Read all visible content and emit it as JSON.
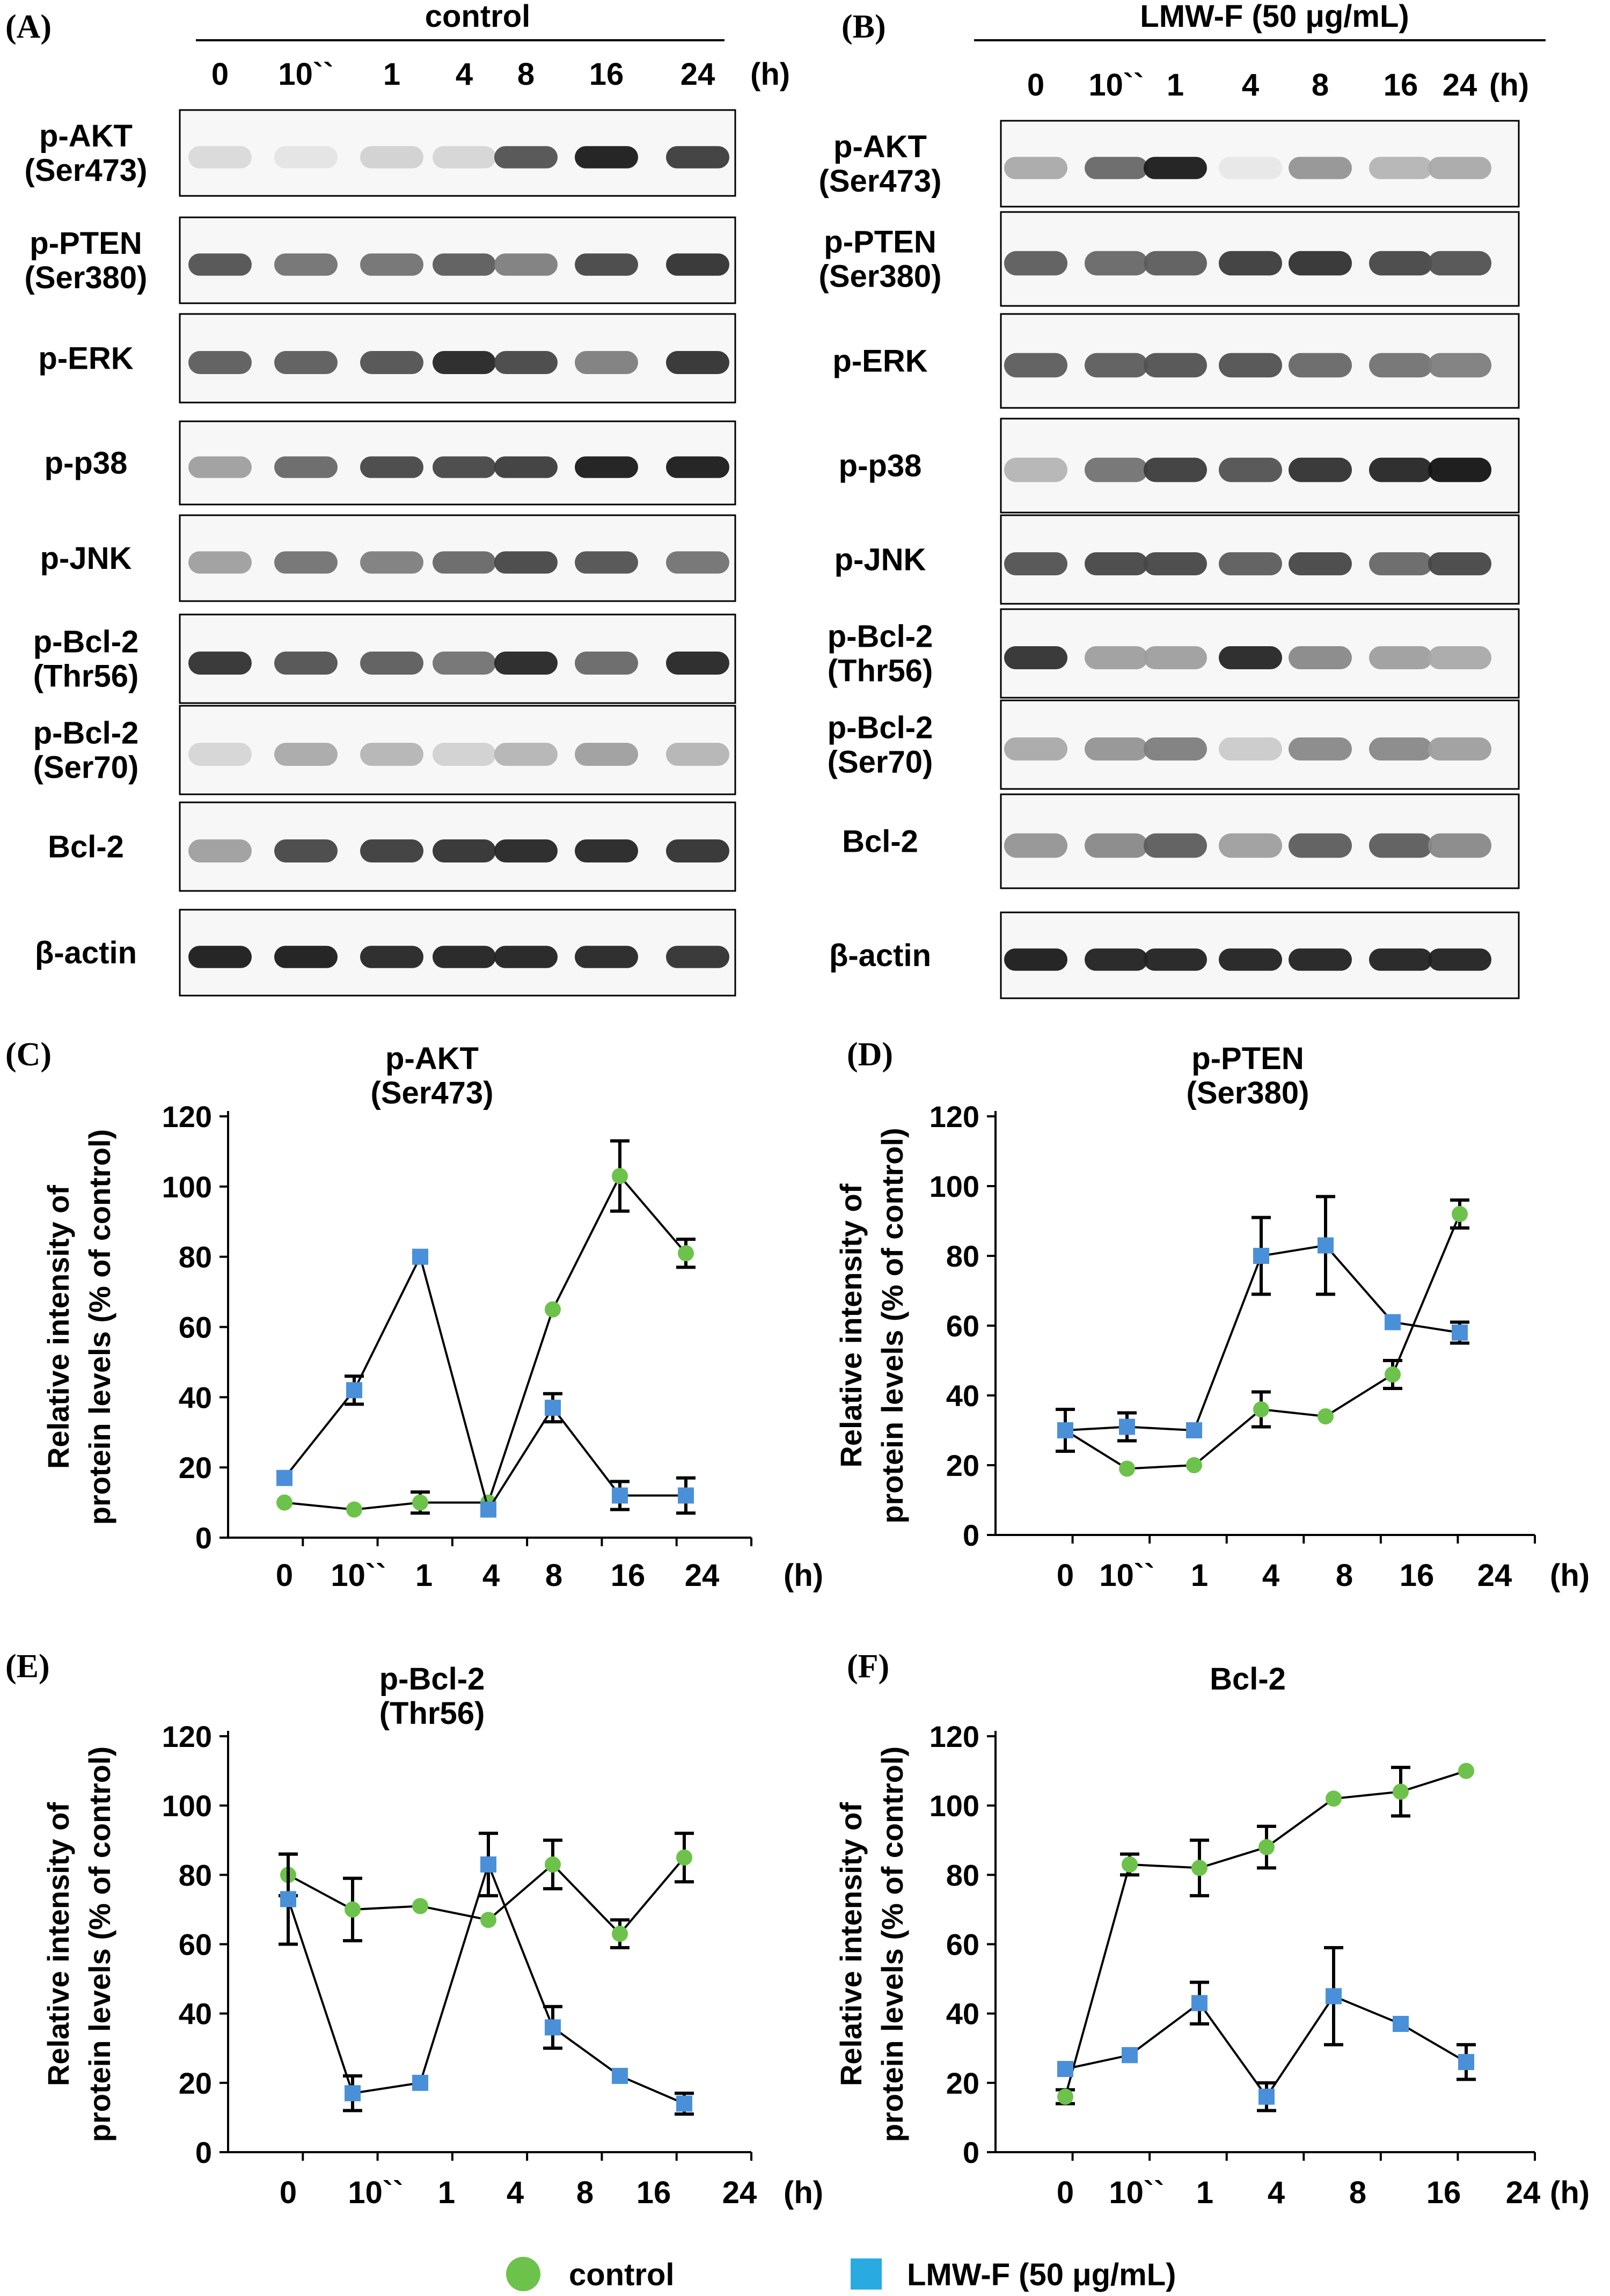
{
  "colors": {
    "control": "#6cc24a",
    "lmw": "#4a90d9",
    "legend_lmw": "#29abe2",
    "line": "#000000",
    "band": "#141414",
    "blot_bg": "#f7f7f7"
  },
  "blots": [
    {
      "id": "A",
      "panel_label": "(A)",
      "title": "control",
      "time_labels": [
        "0",
        "10``",
        "1",
        "4",
        "8",
        "16",
        "24"
      ],
      "unit_label": "(h)",
      "rows": [
        {
          "label": [
            "p-AKT",
            "(Ser473)"
          ],
          "intensity": [
            0.08,
            0.03,
            0.12,
            0.1,
            0.7,
            0.95,
            0.8
          ]
        },
        {
          "label": [
            "p-PTEN",
            "(Ser380)"
          ],
          "intensity": [
            0.7,
            0.55,
            0.55,
            0.65,
            0.5,
            0.75,
            0.85
          ]
        },
        {
          "label": [
            "p-ERK"
          ],
          "intensity": [
            0.65,
            0.65,
            0.7,
            0.9,
            0.75,
            0.5,
            0.85
          ]
        },
        {
          "label": [
            "p-p38"
          ],
          "intensity": [
            0.35,
            0.6,
            0.75,
            0.75,
            0.8,
            0.95,
            0.95
          ]
        },
        {
          "label": [
            "p-JNK"
          ],
          "intensity": [
            0.35,
            0.55,
            0.5,
            0.6,
            0.75,
            0.7,
            0.55
          ]
        },
        {
          "label": [
            "p-Bcl-2",
            "(Thr56)"
          ],
          "intensity": [
            0.85,
            0.7,
            0.65,
            0.55,
            0.9,
            0.6,
            0.9
          ]
        },
        {
          "label": [
            "p-Bcl-2",
            "(Ser70)"
          ],
          "intensity": [
            0.1,
            0.3,
            0.25,
            0.12,
            0.25,
            0.35,
            0.25
          ]
        },
        {
          "label": [
            "Bcl-2"
          ],
          "intensity": [
            0.35,
            0.75,
            0.8,
            0.85,
            0.9,
            0.9,
            0.85
          ]
        },
        {
          "label": [
            "β-actin"
          ],
          "intensity": [
            0.95,
            0.95,
            0.9,
            0.92,
            0.92,
            0.9,
            0.85
          ]
        }
      ]
    },
    {
      "id": "B",
      "panel_label": "(B)",
      "title": "LMW-F (50 μg/mL)",
      "time_labels": [
        "0",
        "10``",
        "1",
        "4",
        "8",
        "16",
        "24"
      ],
      "unit_label": "(h)",
      "rows": [
        {
          "label": [
            "p-AKT",
            "(Ser473)"
          ],
          "intensity": [
            0.3,
            0.6,
            0.95,
            0.02,
            0.4,
            0.25,
            0.3
          ]
        },
        {
          "label": [
            "p-PTEN",
            "(Ser380)"
          ],
          "intensity": [
            0.65,
            0.6,
            0.65,
            0.8,
            0.85,
            0.75,
            0.7
          ]
        },
        {
          "label": [
            "p-ERK"
          ],
          "intensity": [
            0.65,
            0.65,
            0.7,
            0.7,
            0.6,
            0.55,
            0.5
          ]
        },
        {
          "label": [
            "p-p38"
          ],
          "intensity": [
            0.25,
            0.55,
            0.8,
            0.7,
            0.85,
            0.9,
            0.98
          ]
        },
        {
          "label": [
            "p-JNK"
          ],
          "intensity": [
            0.7,
            0.75,
            0.75,
            0.65,
            0.75,
            0.6,
            0.75
          ]
        },
        {
          "label": [
            "p-Bcl-2",
            "(Thr56)"
          ],
          "intensity": [
            0.85,
            0.35,
            0.35,
            0.9,
            0.45,
            0.35,
            0.3
          ]
        },
        {
          "label": [
            "p-Bcl-2",
            "(Ser70)"
          ],
          "intensity": [
            0.3,
            0.4,
            0.5,
            0.15,
            0.45,
            0.45,
            0.35
          ]
        },
        {
          "label": [
            "Bcl-2"
          ],
          "intensity": [
            0.4,
            0.45,
            0.65,
            0.35,
            0.65,
            0.65,
            0.45
          ]
        },
        {
          "label": [
            "β-actin"
          ],
          "intensity": [
            0.95,
            0.92,
            0.92,
            0.92,
            0.92,
            0.92,
            0.92
          ]
        }
      ]
    }
  ],
  "chart_data": [
    {
      "id": "C",
      "panel_label": "(C)",
      "type": "line",
      "title": [
        "p-AKT",
        "(Ser473)"
      ],
      "ylabel": [
        "Relative intensity of",
        "protein levels (% of control)"
      ],
      "categories": [
        "0",
        "10``",
        "1",
        "4",
        "8",
        "16",
        "24"
      ],
      "unit_label": "(h)",
      "ylim": [
        0,
        120
      ],
      "yticks": [
        0,
        20,
        40,
        60,
        80,
        100,
        120
      ],
      "series": [
        {
          "name": "control",
          "values": [
            10,
            8,
            10,
            10,
            65,
            103,
            81
          ],
          "errors": [
            0,
            0,
            3,
            0,
            0,
            10,
            4
          ]
        },
        {
          "name": "LMW-F (50 μg/mL)",
          "values": [
            17,
            42,
            80,
            8,
            37,
            12,
            12
          ],
          "errors": [
            0,
            4,
            0,
            0,
            4,
            4,
            5
          ]
        }
      ]
    },
    {
      "id": "D",
      "panel_label": "(D)",
      "type": "line",
      "title": [
        "p-PTEN",
        "(Ser380)"
      ],
      "ylabel": [
        "Relative intensity of",
        "protein levels (% of control)"
      ],
      "categories": [
        "0",
        "10``",
        "1",
        "4",
        "8",
        "16",
        "24"
      ],
      "unit_label": "(h)",
      "ylim": [
        0,
        120
      ],
      "yticks": [
        0,
        20,
        40,
        60,
        80,
        100,
        120
      ],
      "series": [
        {
          "name": "control",
          "values": [
            30,
            19,
            20,
            36,
            34,
            46,
            92
          ],
          "errors": [
            6,
            0,
            0,
            5,
            0,
            4,
            4
          ]
        },
        {
          "name": "LMW-F (50 μg/mL)",
          "values": [
            30,
            31,
            30,
            80,
            83,
            61,
            58
          ],
          "errors": [
            6,
            4,
            0,
            11,
            14,
            0,
            3
          ]
        }
      ]
    },
    {
      "id": "E",
      "panel_label": "(E)",
      "type": "line",
      "title": [
        "p-Bcl-2",
        "(Thr56)"
      ],
      "ylabel": [
        "Relative intensity of",
        "protein levels (% of control)"
      ],
      "categories": [
        "0",
        "10``",
        "1",
        "4",
        "8",
        "16",
        "24"
      ],
      "unit_label": "(h)",
      "ylim": [
        0,
        120
      ],
      "yticks": [
        0,
        20,
        40,
        60,
        80,
        100,
        120
      ],
      "series": [
        {
          "name": "control",
          "values": [
            80,
            70,
            71,
            67,
            83,
            63,
            85
          ],
          "errors": [
            6,
            9,
            0,
            0,
            7,
            4,
            7
          ]
        },
        {
          "name": "LMW-F (50 μg/mL)",
          "values": [
            73,
            17,
            20,
            83,
            36,
            22,
            14
          ],
          "errors": [
            13,
            5,
            0,
            9,
            6,
            0,
            3
          ]
        }
      ]
    },
    {
      "id": "F",
      "panel_label": "(F)",
      "type": "line",
      "title": [
        "Bcl-2"
      ],
      "ylabel": [
        "Relative intensity of",
        "protein levels (% of control)"
      ],
      "categories": [
        "0",
        "10``",
        "1",
        "4",
        "8",
        "16",
        "24"
      ],
      "unit_label": "(h)",
      "ylim": [
        0,
        120
      ],
      "yticks": [
        0,
        20,
        40,
        60,
        80,
        100,
        120
      ],
      "series": [
        {
          "name": "control",
          "values": [
            16,
            83,
            82,
            88,
            102,
            104,
            110
          ],
          "errors": [
            2,
            3,
            8,
            6,
            0,
            7,
            0
          ]
        },
        {
          "name": "LMW-F (50 μg/mL)",
          "values": [
            24,
            28,
            43,
            16,
            45,
            37,
            26
          ],
          "errors": [
            0,
            0,
            6,
            4,
            14,
            0,
            5
          ]
        }
      ]
    }
  ],
  "legend": {
    "control": "control",
    "lmw": "LMW-F (50 μg/mL)"
  }
}
